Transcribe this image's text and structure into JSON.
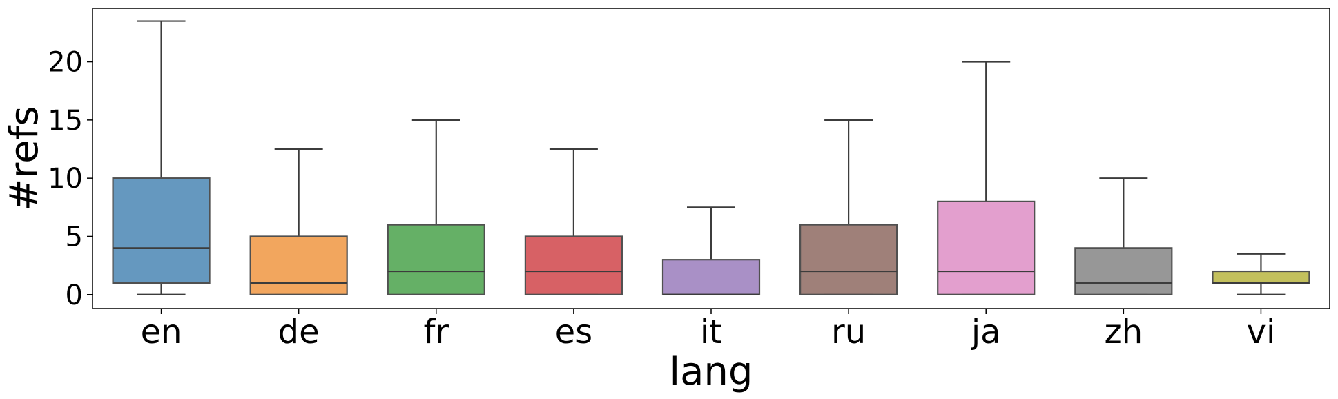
{
  "chart_data": {
    "type": "boxplot",
    "title": "",
    "xlabel": "lang",
    "ylabel": "#refs",
    "ylim": [
      -1.2,
      24.6
    ],
    "yticks": [
      0,
      5,
      10,
      15,
      20
    ],
    "grid": false,
    "legend": "none",
    "categories": [
      "en",
      "de",
      "fr",
      "es",
      "it",
      "ru",
      "ja",
      "zh",
      "vi"
    ],
    "boxes": [
      {
        "label": "en",
        "whislo": 0,
        "q1": 1,
        "med": 4,
        "q3": 10,
        "whishi": 23.5,
        "color": "#4a86b4"
      },
      {
        "label": "de",
        "whislo": 0,
        "q1": 0,
        "med": 1,
        "q3": 5,
        "whishi": 12.5,
        "color": "#f09642"
      },
      {
        "label": "fr",
        "whislo": 0,
        "q1": 0,
        "med": 2,
        "q3": 6,
        "whishi": 15,
        "color": "#4aa24b"
      },
      {
        "label": "es",
        "whislo": 0,
        "q1": 0,
        "med": 2,
        "q3": 5,
        "whishi": 12.5,
        "color": "#d0454a"
      },
      {
        "label": "it",
        "whislo": 0,
        "q1": 0,
        "med": 0,
        "q3": 3,
        "whishi": 7.5,
        "color": "#9a7cbc"
      },
      {
        "label": "ru",
        "whislo": 0,
        "q1": 0,
        "med": 2,
        "q3": 6,
        "whishi": 15,
        "color": "#8e6a62"
      },
      {
        "label": "ja",
        "whislo": 0,
        "q1": 0,
        "med": 2,
        "q3": 8,
        "whishi": 20,
        "color": "#de8ec6"
      },
      {
        "label": "zh",
        "whislo": 0,
        "q1": 0,
        "med": 1,
        "q3": 4,
        "whishi": 10,
        "color": "#858585"
      },
      {
        "label": "vi",
        "whislo": 0,
        "q1": 1,
        "med": 1,
        "q3": 2,
        "whishi": 3.5,
        "color": "#b8b541"
      }
    ]
  }
}
